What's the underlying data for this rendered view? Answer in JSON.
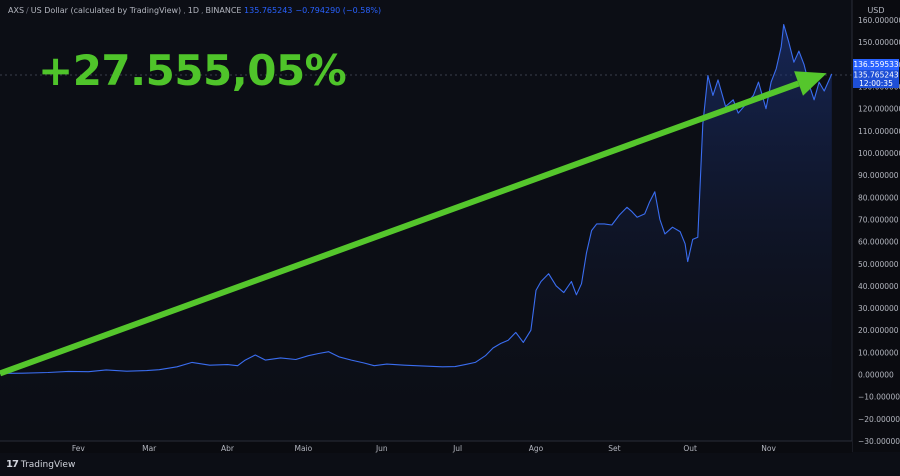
{
  "header": {
    "symbol": "AXS",
    "pair": "US Dollar (calculated by TradingView)",
    "interval": "1D",
    "exchange": "BINANCE",
    "last": "135.765243",
    "change": "−0.794290 (−0.58%)"
  },
  "gain_label": "+27.555,05%",
  "brand": "TradingView",
  "axis": {
    "currency": "USD",
    "price_tag_1": "136.559533",
    "price_tag_2": "135.765243",
    "countdown": "12:00:35"
  },
  "colors": {
    "line": "#3a6df0",
    "fill": "#1b2a5c",
    "arrow": "#55c62c",
    "gain_text": "#4fc42a",
    "background": "#0c0e15"
  },
  "chart_data": {
    "type": "area",
    "ylim": [
      -30,
      165
    ],
    "yticks": [
      -30,
      -20,
      -10,
      0,
      10,
      20,
      30,
      40,
      50,
      60,
      70,
      80,
      90,
      100,
      110,
      120,
      130,
      140,
      150,
      160
    ],
    "ytick_labels": [
      "−30.000000",
      "−20.000000",
      "−10.000000",
      "0.000000",
      "10.000000",
      "20.000000",
      "30.000000",
      "40.000000",
      "50.000000",
      "60.000000",
      "70.000000",
      "80.000000",
      "90.000000",
      "100.000000",
      "110.000000",
      "120.000000",
      "130.000000",
      "140.000000",
      "150.000000",
      "160.000000"
    ],
    "xticks": [
      "Fev",
      "Mar",
      "Abr",
      "Maio",
      "Jun",
      "Jul",
      "Ago",
      "Set",
      "Out",
      "Nov"
    ],
    "xtick_dates": [
      "2021-02-01",
      "2021-03-01",
      "2021-04-01",
      "2021-05-01",
      "2021-06-01",
      "2021-07-01",
      "2021-08-01",
      "2021-09-01",
      "2021-10-01",
      "2021-11-01"
    ],
    "grid": false,
    "annotation": {
      "text": "+27.555,05%",
      "arrow_start": {
        "x": "2021-01-01",
        "y": 0.5
      },
      "arrow_end": {
        "x": "2021-11-24",
        "y": 136
      }
    },
    "series": [
      {
        "points": [
          [
            "2021-01-01",
            0.5
          ],
          [
            "2021-01-10",
            0.6
          ],
          [
            "2021-01-20",
            0.9
          ],
          [
            "2021-01-28",
            1.4
          ],
          [
            "2021-02-05",
            1.3
          ],
          [
            "2021-02-12",
            2.1
          ],
          [
            "2021-02-20",
            1.5
          ],
          [
            "2021-02-28",
            1.8
          ],
          [
            "2021-03-05",
            2.2
          ],
          [
            "2021-03-12",
            3.5
          ],
          [
            "2021-03-18",
            5.5
          ],
          [
            "2021-03-25",
            4.2
          ],
          [
            "2021-04-01",
            4.5
          ],
          [
            "2021-04-05",
            4.0
          ],
          [
            "2021-04-08",
            6.5
          ],
          [
            "2021-04-12",
            8.8
          ],
          [
            "2021-04-16",
            6.5
          ],
          [
            "2021-04-22",
            7.5
          ],
          [
            "2021-04-28",
            6.8
          ],
          [
            "2021-05-03",
            8.5
          ],
          [
            "2021-05-07",
            9.5
          ],
          [
            "2021-05-11",
            10.3
          ],
          [
            "2021-05-15",
            8.0
          ],
          [
            "2021-05-20",
            6.5
          ],
          [
            "2021-05-25",
            5.2
          ],
          [
            "2021-05-29",
            4.0
          ],
          [
            "2021-06-03",
            4.7
          ],
          [
            "2021-06-10",
            4.2
          ],
          [
            "2021-06-18",
            3.8
          ],
          [
            "2021-06-25",
            3.5
          ],
          [
            "2021-06-30",
            3.6
          ],
          [
            "2021-07-04",
            4.5
          ],
          [
            "2021-07-08",
            5.5
          ],
          [
            "2021-07-12",
            8.5
          ],
          [
            "2021-07-15",
            12.0
          ],
          [
            "2021-07-18",
            14.0
          ],
          [
            "2021-07-21",
            15.5
          ],
          [
            "2021-07-24",
            19.0
          ],
          [
            "2021-07-27",
            14.5
          ],
          [
            "2021-07-30",
            20.0
          ],
          [
            "2021-08-01",
            38.0
          ],
          [
            "2021-08-03",
            42.0
          ],
          [
            "2021-08-06",
            45.5
          ],
          [
            "2021-08-09",
            40.0
          ],
          [
            "2021-08-12",
            37.0
          ],
          [
            "2021-08-15",
            42.0
          ],
          [
            "2021-08-17",
            36.0
          ],
          [
            "2021-08-19",
            41.0
          ],
          [
            "2021-08-21",
            55.0
          ],
          [
            "2021-08-23",
            65.0
          ],
          [
            "2021-08-25",
            68.0
          ],
          [
            "2021-08-28",
            68.0
          ],
          [
            "2021-08-31",
            67.5
          ],
          [
            "2021-09-03",
            72.0
          ],
          [
            "2021-09-06",
            75.5
          ],
          [
            "2021-09-08",
            73.5
          ],
          [
            "2021-09-10",
            71.0
          ],
          [
            "2021-09-13",
            72.5
          ],
          [
            "2021-09-15",
            78.0
          ],
          [
            "2021-09-17",
            82.5
          ],
          [
            "2021-09-19",
            70.0
          ],
          [
            "2021-09-21",
            63.5
          ],
          [
            "2021-09-24",
            66.5
          ],
          [
            "2021-09-27",
            64.5
          ],
          [
            "2021-09-29",
            59.0
          ],
          [
            "2021-09-30",
            51.0
          ],
          [
            "2021-10-02",
            61.0
          ],
          [
            "2021-10-04",
            62.0
          ],
          [
            "2021-10-06",
            113.0
          ],
          [
            "2021-10-08",
            135.0
          ],
          [
            "2021-10-10",
            126.0
          ],
          [
            "2021-10-12",
            133.0
          ],
          [
            "2021-10-15",
            121.0
          ],
          [
            "2021-10-18",
            124.0
          ],
          [
            "2021-10-20",
            118.0
          ],
          [
            "2021-10-23",
            122.0
          ],
          [
            "2021-10-26",
            126.0
          ],
          [
            "2021-10-28",
            132.0
          ],
          [
            "2021-10-31",
            120.0
          ],
          [
            "2021-11-02",
            132.0
          ],
          [
            "2021-11-04",
            138.0
          ],
          [
            "2021-11-06",
            148.0
          ],
          [
            "2021-11-07",
            158.0
          ],
          [
            "2021-11-09",
            150.0
          ],
          [
            "2021-11-11",
            141.0
          ],
          [
            "2021-11-13",
            146.0
          ],
          [
            "2021-11-15",
            140.0
          ],
          [
            "2021-11-17",
            131.0
          ],
          [
            "2021-11-19",
            124.0
          ],
          [
            "2021-11-21",
            132.0
          ],
          [
            "2021-11-23",
            128.0
          ],
          [
            "2021-11-26",
            135.7
          ]
        ]
      }
    ]
  }
}
